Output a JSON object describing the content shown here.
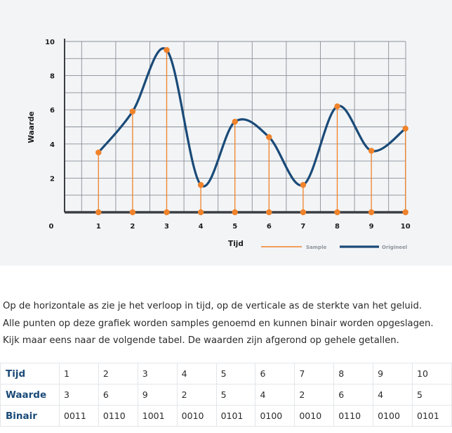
{
  "chart_data": {
    "type": "line",
    "xlabel": "Tijd",
    "ylabel": "Waarde",
    "x": [
      1,
      2,
      3,
      4,
      5,
      6,
      7,
      8,
      9,
      10
    ],
    "x_ticks": [
      "0",
      "1",
      "2",
      "3",
      "4",
      "5",
      "6",
      "7",
      "8",
      "9",
      "10"
    ],
    "y_ticks": [
      "2",
      "4",
      "6",
      "8",
      "10"
    ],
    "xlim": [
      0,
      10
    ],
    "ylim": [
      0,
      10
    ],
    "grid": true,
    "legend_position": "bottom-right",
    "series": [
      {
        "name": "Sample",
        "style": "stem",
        "color": "#f0832b",
        "values": [
          3.5,
          5.9,
          9.5,
          1.6,
          5.3,
          4.4,
          1.6,
          6.2,
          3.6,
          4.9
        ]
      },
      {
        "name": "Origineel",
        "style": "smooth-line",
        "color": "#1a4a78",
        "values": [
          3.5,
          5.9,
          9.5,
          1.6,
          5.3,
          4.4,
          1.6,
          6.2,
          3.6,
          4.9
        ]
      }
    ]
  },
  "colors": {
    "sample": "#f0832b",
    "original": "#1a4a78",
    "grid": "#8a8f96",
    "axis": "#3b3f44",
    "panel_background": "#f2f4f6"
  },
  "text": {
    "lines": [
      "Op de horizontale as zie je het verloop in tijd, op de verticale as de sterkte van het geluid.",
      "Alle punten op deze grafiek worden samples genoemd en kunnen binair worden opgeslagen.",
      "Kijk maar eens naar de volgende tabel. De waarden zijn afgerond op gehele getallen."
    ]
  },
  "table": {
    "rows": [
      {
        "label": "Tijd",
        "cells": [
          "1",
          "2",
          "3",
          "4",
          "5",
          "6",
          "7",
          "8",
          "9",
          "10"
        ]
      },
      {
        "label": "Waarde",
        "cells": [
          "3",
          "6",
          "9",
          "2",
          "5",
          "4",
          "2",
          "6",
          "4",
          "5"
        ]
      },
      {
        "label": "Binair",
        "cells": [
          "0011",
          "0110",
          "1001",
          "0010",
          "0101",
          "0100",
          "0010",
          "0110",
          "0100",
          "0101"
        ]
      }
    ]
  }
}
